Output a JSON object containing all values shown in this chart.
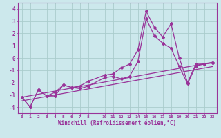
{
  "title": "",
  "xlabel": "Windchill (Refroidissement éolien,°C)",
  "bg_color": "#cce8ec",
  "grid_color": "#aacccc",
  "line_color": "#993399",
  "xlim": [
    -0.5,
    23.5
  ],
  "ylim": [
    -4.5,
    4.5
  ],
  "xticks": [
    0,
    1,
    2,
    3,
    4,
    5,
    6,
    7,
    8,
    10,
    11,
    12,
    13,
    14,
    15,
    16,
    17,
    18,
    19,
    20,
    21,
    22,
    23
  ],
  "yticks": [
    -4,
    -3,
    -2,
    -1,
    0,
    1,
    2,
    3,
    4
  ],
  "series1_x": [
    0,
    1,
    2,
    3,
    4,
    5,
    6,
    7,
    8,
    10,
    11,
    12,
    13,
    14,
    15,
    16,
    17,
    18,
    19,
    20,
    21,
    22,
    23
  ],
  "series1_y": [
    -3.2,
    -4.0,
    -2.6,
    -3.1,
    -3.1,
    -2.2,
    -2.4,
    -2.5,
    -2.3,
    -1.6,
    -1.5,
    -1.7,
    -1.5,
    -0.3,
    3.2,
    1.8,
    1.2,
    0.8,
    -0.7,
    -2.1,
    -0.65,
    -0.5,
    -0.4
  ],
  "series2_x": [
    0,
    1,
    2,
    3,
    4,
    5,
    6,
    7,
    8,
    10,
    11,
    12,
    13,
    14,
    15,
    16,
    17,
    18,
    19,
    20,
    21,
    22,
    23
  ],
  "series2_y": [
    -3.2,
    -4.0,
    -2.6,
    -3.1,
    -2.8,
    -2.2,
    -2.4,
    -2.3,
    -1.9,
    -1.4,
    -1.3,
    -0.8,
    -0.5,
    0.65,
    3.8,
    2.5,
    1.7,
    2.8,
    0.0,
    -2.0,
    -0.5,
    -0.5,
    -0.4
  ],
  "series3_x": [
    0,
    23
  ],
  "series3_y": [
    -3.2,
    -0.35
  ],
  "series4_x": [
    0,
    23
  ],
  "series4_y": [
    -3.5,
    -0.7
  ]
}
